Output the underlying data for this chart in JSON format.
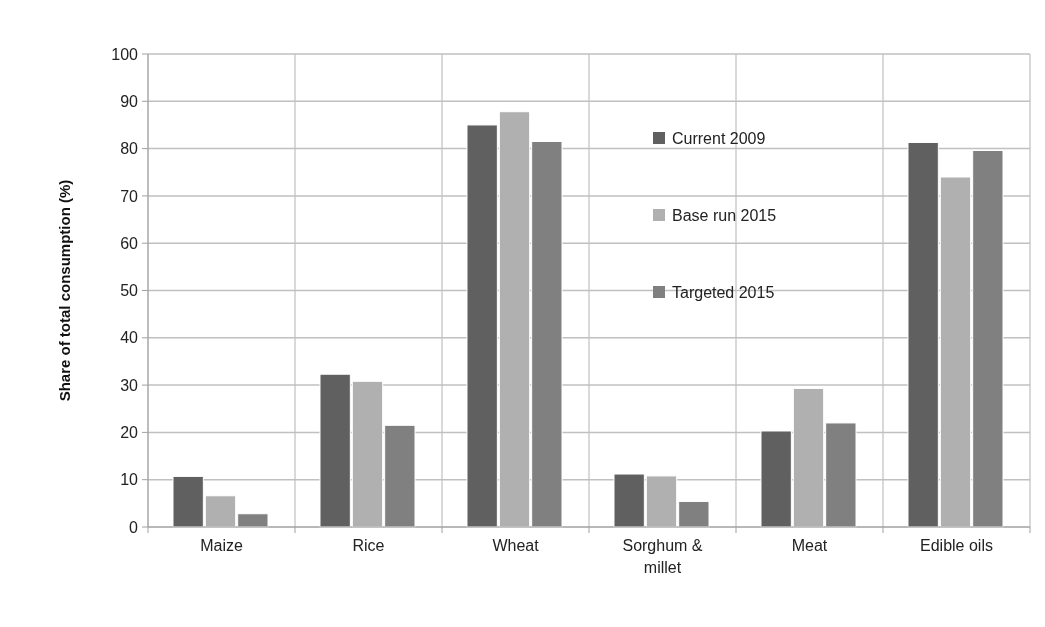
{
  "chart_data": {
    "type": "bar",
    "ylabel": "Share of total consumption (%)",
    "categories": [
      "Maize",
      "Rice",
      "Wheat",
      "Sorghum & millet",
      "Meat",
      "Edible oils"
    ],
    "series": [
      {
        "name": "Current 2009",
        "color": "#606060",
        "values": [
          10.7,
          32.3,
          85.0,
          11.2,
          20.3,
          81.3
        ]
      },
      {
        "name": "Base run 2015",
        "color": "#b0b0b0",
        "values": [
          6.6,
          30.8,
          87.8,
          10.8,
          29.3,
          74.0
        ]
      },
      {
        "name": "Targeted 2015",
        "color": "#808080",
        "values": [
          2.8,
          21.5,
          81.5,
          5.4,
          22.0,
          79.6
        ]
      }
    ],
    "ylim": [
      0,
      100
    ],
    "yticks": [
      0,
      10,
      20,
      30,
      40,
      50,
      60,
      70,
      80,
      90,
      100
    ],
    "grid": true,
    "legend": "top right"
  }
}
